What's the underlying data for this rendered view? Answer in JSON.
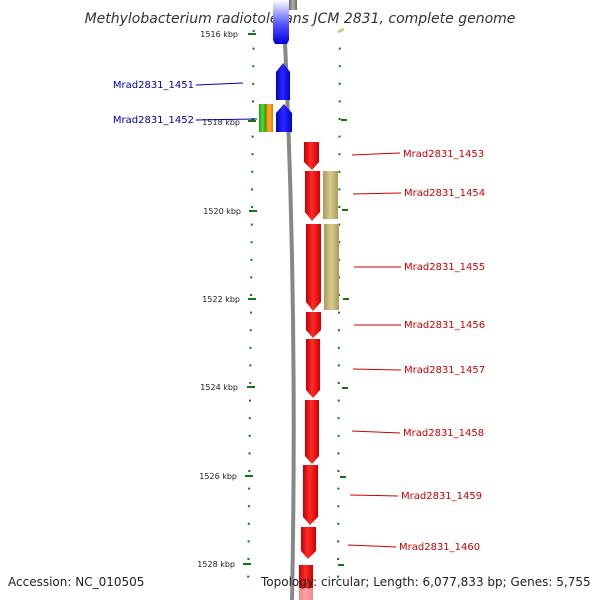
{
  "title": "Methylobacterium radiotolerans JCM 2831, complete genome",
  "footer": {
    "accession": "Accession: NC_010505",
    "summary": "Topology: circular; Length: 6,077,833 bp; Genes: 5,755"
  },
  "ruler": {
    "ticks": [
      {
        "label": "1516 kbp",
        "kbp": 1516
      },
      {
        "label": "1518 kbp",
        "kbp": 1518
      },
      {
        "label": "1520 kbp",
        "kbp": 1520
      },
      {
        "label": "1522 kbp",
        "kbp": 1522
      },
      {
        "label": "1524 kbp",
        "kbp": 1524
      },
      {
        "label": "1526 kbp",
        "kbp": 1526
      },
      {
        "label": "1528 kbp",
        "kbp": 1528
      }
    ]
  },
  "colors": {
    "forward_strand": "#1a1aee",
    "reverse_strand": "#ee1111",
    "feature_khaki": "#c8bd7d",
    "feature_green": "#33bb22",
    "feature_orange": "#ff9900",
    "tick_green": "#117711",
    "backbone_gray": "#888888"
  },
  "genes": [
    {
      "name": "Mrad2831_1451",
      "strand": "forward",
      "color": "#1a1aee",
      "clickable": true
    },
    {
      "name": "Mrad2831_1452",
      "strand": "forward",
      "color": "#1a1aee",
      "clickable": true
    },
    {
      "name": "Mrad2831_1453",
      "strand": "reverse",
      "color": "#ee1111",
      "clickable": true
    },
    {
      "name": "Mrad2831_1454",
      "strand": "reverse",
      "color": "#ee1111",
      "clickable": true
    },
    {
      "name": "Mrad2831_1455",
      "strand": "reverse",
      "color": "#ee1111",
      "clickable": true
    },
    {
      "name": "Mrad2831_1456",
      "strand": "reverse",
      "color": "#ee1111",
      "clickable": true
    },
    {
      "name": "Mrad2831_1457",
      "strand": "reverse",
      "color": "#ee1111",
      "clickable": true
    },
    {
      "name": "Mrad2831_1458",
      "strand": "reverse",
      "color": "#ee1111",
      "clickable": true
    },
    {
      "name": "Mrad2831_1459",
      "strand": "reverse",
      "color": "#ee1111",
      "clickable": true
    },
    {
      "name": "Mrad2831_1460",
      "strand": "reverse",
      "color": "#ee1111",
      "clickable": true
    }
  ]
}
